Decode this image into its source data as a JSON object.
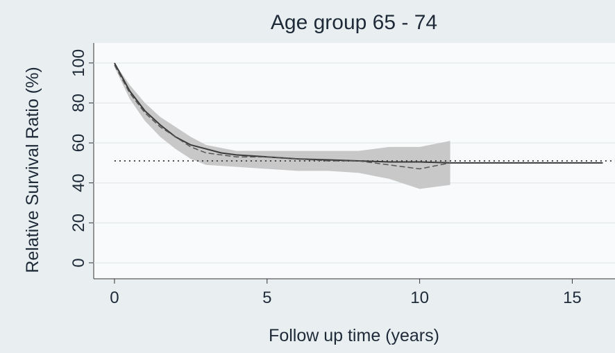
{
  "chart_data": {
    "type": "line",
    "title": "Age group 65 - 74",
    "xlabel": "Follow up time (years)",
    "ylabel": "Relative Survival Ratio (%)",
    "xlim": [
      -0.68,
      16.4
    ],
    "ylim": [
      -8,
      110
    ],
    "xticks": [
      0,
      5,
      10,
      15
    ],
    "yticks": [
      0,
      20,
      40,
      60,
      80,
      100
    ],
    "grid": true,
    "band": {
      "color": "#c8c8c8",
      "x": [
        0,
        0.5,
        1,
        1.5,
        2,
        2.5,
        3,
        4,
        5,
        6,
        7,
        8,
        9,
        10,
        11
      ],
      "lower": [
        98,
        82,
        71,
        63,
        57,
        52,
        49,
        48,
        47,
        46,
        46,
        45,
        42,
        37,
        39
      ],
      "upper": [
        100,
        89,
        80,
        73,
        68,
        63,
        59,
        56,
        56,
        56,
        56,
        56,
        58,
        58,
        61
      ]
    },
    "series": [
      {
        "color": "#3a3a3a",
        "style": "solid",
        "x": [
          0,
          0.5,
          1,
          1.5,
          2,
          2.5,
          3,
          3.5,
          4,
          5,
          6,
          7,
          8,
          9,
          10,
          11,
          12,
          13,
          14,
          15,
          16
        ],
        "values": [
          100,
          86,
          76,
          69,
          63,
          59,
          57,
          55,
          54,
          53,
          52,
          51.5,
          51,
          50.5,
          50.5,
          50,
          50,
          50,
          50,
          50,
          50
        ]
      },
      {
        "color": "#555555",
        "style": "dashed",
        "x": [
          0,
          0.5,
          1,
          1.5,
          2,
          2.5,
          3,
          4,
          5,
          6,
          7,
          8,
          9,
          10,
          11
        ],
        "values": [
          99,
          85,
          75,
          68,
          63,
          58,
          55,
          53,
          53,
          52,
          51,
          51,
          49,
          47,
          50
        ]
      }
    ],
    "reference_line": 51
  }
}
